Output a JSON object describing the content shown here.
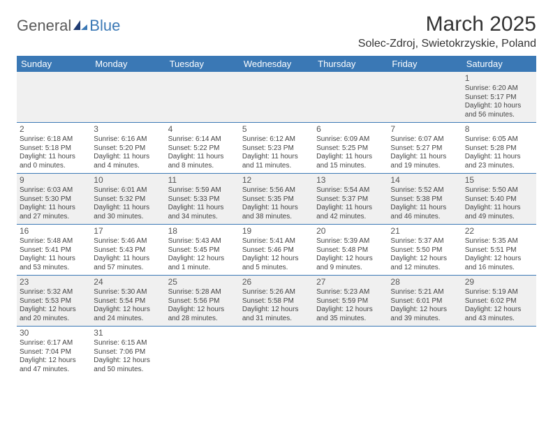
{
  "logo": {
    "general": "General",
    "blue": "Blue"
  },
  "title": "March 2025",
  "location": "Solec-Zdroj, Swietokrzyskie, Poland",
  "colors": {
    "header_bg": "#3a78b5",
    "header_fg": "#ffffff",
    "row_alt_bg": "#f0f0f0",
    "text": "#333333",
    "border": "#3a78b5"
  },
  "typography": {
    "title_fontsize_pt": 22,
    "location_fontsize_pt": 12,
    "header_fontsize_pt": 10,
    "cell_fontsize_pt": 7.5
  },
  "day_headers": [
    "Sunday",
    "Monday",
    "Tuesday",
    "Wednesday",
    "Thursday",
    "Friday",
    "Saturday"
  ],
  "weeks": [
    [
      null,
      null,
      null,
      null,
      null,
      null,
      {
        "n": "1",
        "sunrise": "Sunrise: 6:20 AM",
        "sunset": "Sunset: 5:17 PM",
        "day1": "Daylight: 10 hours",
        "day2": "and 56 minutes."
      }
    ],
    [
      {
        "n": "2",
        "sunrise": "Sunrise: 6:18 AM",
        "sunset": "Sunset: 5:18 PM",
        "day1": "Daylight: 11 hours",
        "day2": "and 0 minutes."
      },
      {
        "n": "3",
        "sunrise": "Sunrise: 6:16 AM",
        "sunset": "Sunset: 5:20 PM",
        "day1": "Daylight: 11 hours",
        "day2": "and 4 minutes."
      },
      {
        "n": "4",
        "sunrise": "Sunrise: 6:14 AM",
        "sunset": "Sunset: 5:22 PM",
        "day1": "Daylight: 11 hours",
        "day2": "and 8 minutes."
      },
      {
        "n": "5",
        "sunrise": "Sunrise: 6:12 AM",
        "sunset": "Sunset: 5:23 PM",
        "day1": "Daylight: 11 hours",
        "day2": "and 11 minutes."
      },
      {
        "n": "6",
        "sunrise": "Sunrise: 6:09 AM",
        "sunset": "Sunset: 5:25 PM",
        "day1": "Daylight: 11 hours",
        "day2": "and 15 minutes."
      },
      {
        "n": "7",
        "sunrise": "Sunrise: 6:07 AM",
        "sunset": "Sunset: 5:27 PM",
        "day1": "Daylight: 11 hours",
        "day2": "and 19 minutes."
      },
      {
        "n": "8",
        "sunrise": "Sunrise: 6:05 AM",
        "sunset": "Sunset: 5:28 PM",
        "day1": "Daylight: 11 hours",
        "day2": "and 23 minutes."
      }
    ],
    [
      {
        "n": "9",
        "sunrise": "Sunrise: 6:03 AM",
        "sunset": "Sunset: 5:30 PM",
        "day1": "Daylight: 11 hours",
        "day2": "and 27 minutes."
      },
      {
        "n": "10",
        "sunrise": "Sunrise: 6:01 AM",
        "sunset": "Sunset: 5:32 PM",
        "day1": "Daylight: 11 hours",
        "day2": "and 30 minutes."
      },
      {
        "n": "11",
        "sunrise": "Sunrise: 5:59 AM",
        "sunset": "Sunset: 5:33 PM",
        "day1": "Daylight: 11 hours",
        "day2": "and 34 minutes."
      },
      {
        "n": "12",
        "sunrise": "Sunrise: 5:56 AM",
        "sunset": "Sunset: 5:35 PM",
        "day1": "Daylight: 11 hours",
        "day2": "and 38 minutes."
      },
      {
        "n": "13",
        "sunrise": "Sunrise: 5:54 AM",
        "sunset": "Sunset: 5:37 PM",
        "day1": "Daylight: 11 hours",
        "day2": "and 42 minutes."
      },
      {
        "n": "14",
        "sunrise": "Sunrise: 5:52 AM",
        "sunset": "Sunset: 5:38 PM",
        "day1": "Daylight: 11 hours",
        "day2": "and 46 minutes."
      },
      {
        "n": "15",
        "sunrise": "Sunrise: 5:50 AM",
        "sunset": "Sunset: 5:40 PM",
        "day1": "Daylight: 11 hours",
        "day2": "and 49 minutes."
      }
    ],
    [
      {
        "n": "16",
        "sunrise": "Sunrise: 5:48 AM",
        "sunset": "Sunset: 5:41 PM",
        "day1": "Daylight: 11 hours",
        "day2": "and 53 minutes."
      },
      {
        "n": "17",
        "sunrise": "Sunrise: 5:46 AM",
        "sunset": "Sunset: 5:43 PM",
        "day1": "Daylight: 11 hours",
        "day2": "and 57 minutes."
      },
      {
        "n": "18",
        "sunrise": "Sunrise: 5:43 AM",
        "sunset": "Sunset: 5:45 PM",
        "day1": "Daylight: 12 hours",
        "day2": "and 1 minute."
      },
      {
        "n": "19",
        "sunrise": "Sunrise: 5:41 AM",
        "sunset": "Sunset: 5:46 PM",
        "day1": "Daylight: 12 hours",
        "day2": "and 5 minutes."
      },
      {
        "n": "20",
        "sunrise": "Sunrise: 5:39 AM",
        "sunset": "Sunset: 5:48 PM",
        "day1": "Daylight: 12 hours",
        "day2": "and 9 minutes."
      },
      {
        "n": "21",
        "sunrise": "Sunrise: 5:37 AM",
        "sunset": "Sunset: 5:50 PM",
        "day1": "Daylight: 12 hours",
        "day2": "and 12 minutes."
      },
      {
        "n": "22",
        "sunrise": "Sunrise: 5:35 AM",
        "sunset": "Sunset: 5:51 PM",
        "day1": "Daylight: 12 hours",
        "day2": "and 16 minutes."
      }
    ],
    [
      {
        "n": "23",
        "sunrise": "Sunrise: 5:32 AM",
        "sunset": "Sunset: 5:53 PM",
        "day1": "Daylight: 12 hours",
        "day2": "and 20 minutes."
      },
      {
        "n": "24",
        "sunrise": "Sunrise: 5:30 AM",
        "sunset": "Sunset: 5:54 PM",
        "day1": "Daylight: 12 hours",
        "day2": "and 24 minutes."
      },
      {
        "n": "25",
        "sunrise": "Sunrise: 5:28 AM",
        "sunset": "Sunset: 5:56 PM",
        "day1": "Daylight: 12 hours",
        "day2": "and 28 minutes."
      },
      {
        "n": "26",
        "sunrise": "Sunrise: 5:26 AM",
        "sunset": "Sunset: 5:58 PM",
        "day1": "Daylight: 12 hours",
        "day2": "and 31 minutes."
      },
      {
        "n": "27",
        "sunrise": "Sunrise: 5:23 AM",
        "sunset": "Sunset: 5:59 PM",
        "day1": "Daylight: 12 hours",
        "day2": "and 35 minutes."
      },
      {
        "n": "28",
        "sunrise": "Sunrise: 5:21 AM",
        "sunset": "Sunset: 6:01 PM",
        "day1": "Daylight: 12 hours",
        "day2": "and 39 minutes."
      },
      {
        "n": "29",
        "sunrise": "Sunrise: 5:19 AM",
        "sunset": "Sunset: 6:02 PM",
        "day1": "Daylight: 12 hours",
        "day2": "and 43 minutes."
      }
    ],
    [
      {
        "n": "30",
        "sunrise": "Sunrise: 6:17 AM",
        "sunset": "Sunset: 7:04 PM",
        "day1": "Daylight: 12 hours",
        "day2": "and 47 minutes."
      },
      {
        "n": "31",
        "sunrise": "Sunrise: 6:15 AM",
        "sunset": "Sunset: 7:06 PM",
        "day1": "Daylight: 12 hours",
        "day2": "and 50 minutes."
      },
      null,
      null,
      null,
      null,
      null
    ]
  ]
}
